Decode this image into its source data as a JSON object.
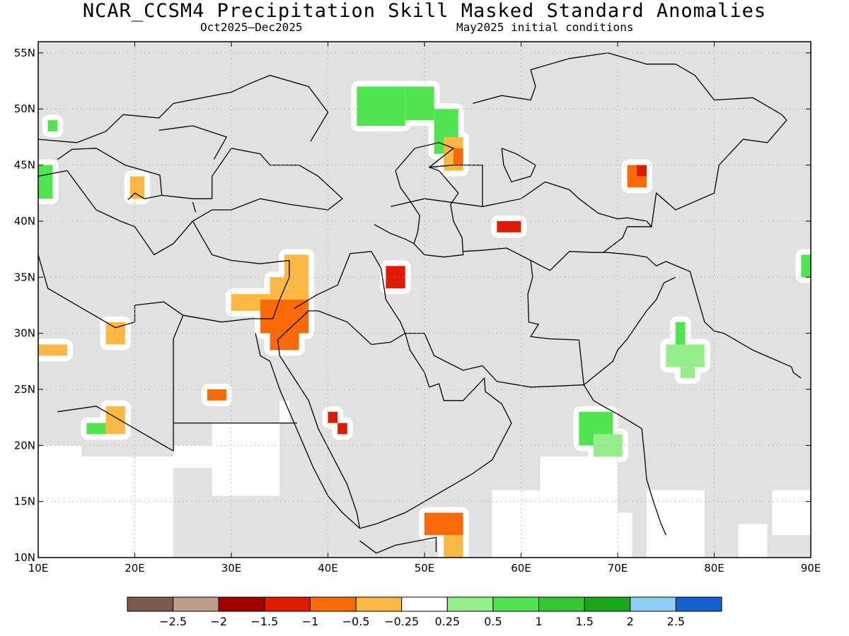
{
  "title": "NCAR_CCSM4 Precipitation Skill Masked Standard Anomalies",
  "subtitle_left": "Oct2025–Dec2025",
  "subtitle_right": "May2025 initial conditions",
  "colors": {
    "land": "#e1e1e1",
    "masked": "#ffffff",
    "border": "#000000",
    "grid": "#9a9a9a"
  },
  "axes": {
    "lon_min": 10,
    "lon_max": 90,
    "lat_min": 10,
    "lat_max": 56,
    "lon_ticks": [
      {
        "v": 10,
        "label": "10E"
      },
      {
        "v": 20,
        "label": "20E"
      },
      {
        "v": 30,
        "label": "30E"
      },
      {
        "v": 40,
        "label": "40E"
      },
      {
        "v": 50,
        "label": "50E"
      },
      {
        "v": 60,
        "label": "60E"
      },
      {
        "v": 70,
        "label": "70E"
      },
      {
        "v": 80,
        "label": "80E"
      },
      {
        "v": 90,
        "label": "90E"
      }
    ],
    "lat_ticks": [
      {
        "v": 10,
        "label": "10N"
      },
      {
        "v": 15,
        "label": "15N"
      },
      {
        "v": 20,
        "label": "20N"
      },
      {
        "v": 25,
        "label": "25N"
      },
      {
        "v": 30,
        "label": "30N"
      },
      {
        "v": 35,
        "label": "35N"
      },
      {
        "v": 40,
        "label": "40N"
      },
      {
        "v": 45,
        "label": "45N"
      },
      {
        "v": 50,
        "label": "50N"
      },
      {
        "v": 55,
        "label": "55N"
      }
    ]
  },
  "colorbar": {
    "colors": [
      "#7a5a4a",
      "#c09a8a",
      "#a40000",
      "#e01a00",
      "#f86a08",
      "#fbb844",
      "#ffffff",
      "#96ee8a",
      "#50e450",
      "#33c733",
      "#1ba71b",
      "#8ecef5",
      "#1560d0"
    ],
    "labels": [
      "−2.5",
      "−2",
      "−1.5",
      "−1",
      "−0.5",
      "−0.25",
      "0.25",
      "0.5",
      "1",
      "1.5",
      "2",
      "2.5"
    ]
  },
  "masked_regions": [
    [
      10,
      10,
      14.5,
      20
    ],
    [
      14.5,
      10,
      24,
      19
    ],
    [
      24,
      18,
      28,
      20
    ],
    [
      28,
      15.5,
      35,
      22
    ],
    [
      35,
      22,
      36,
      24
    ],
    [
      57,
      10,
      60,
      16
    ],
    [
      60,
      10,
      70,
      16
    ],
    [
      62,
      16,
      70,
      19
    ],
    [
      70,
      10,
      71.5,
      14
    ],
    [
      73,
      10,
      79,
      16
    ],
    [
      82.5,
      10,
      85.5,
      13
    ],
    [
      86,
      12,
      90,
      16
    ]
  ],
  "anomaly_cells": [
    {
      "lon": [
        43,
        48
      ],
      "lat": [
        48.5,
        52
      ],
      "cat": "pos_1.0"
    },
    {
      "lon": [
        48,
        51
      ],
      "lat": [
        49,
        52
      ],
      "cat": "pos_1.0"
    },
    {
      "lon": [
        51,
        53.5
      ],
      "lat": [
        46,
        50
      ],
      "cat": "pos_1.0"
    },
    {
      "lon": [
        52,
        54
      ],
      "lat": [
        44.5,
        47.5
      ],
      "cat": "neg_0.25"
    },
    {
      "lon": [
        53,
        54
      ],
      "lat": [
        45,
        46.5
      ],
      "cat": "neg_0.5"
    },
    {
      "lon": [
        10,
        11.5
      ],
      "lat": [
        42,
        45
      ],
      "cat": "pos_1.0"
    },
    {
      "lon": [
        11,
        12
      ],
      "lat": [
        48,
        49
      ],
      "cat": "pos_1.0"
    },
    {
      "lon": [
        19.5,
        21
      ],
      "lat": [
        42,
        44
      ],
      "cat": "neg_0.25"
    },
    {
      "lon": [
        35.5,
        38
      ],
      "lat": [
        35,
        37
      ],
      "cat": "neg_0.25"
    },
    {
      "lon": [
        34,
        38
      ],
      "lat": [
        33,
        35
      ],
      "cat": "neg_0.25"
    },
    {
      "lon": [
        30,
        34
      ],
      "lat": [
        32,
        33.5
      ],
      "cat": "neg_0.25"
    },
    {
      "lon": [
        33,
        38
      ],
      "lat": [
        30,
        33
      ],
      "cat": "neg_0.5"
    },
    {
      "lon": [
        34,
        37
      ],
      "lat": [
        28.5,
        31
      ],
      "cat": "neg_0.5"
    },
    {
      "lon": [
        46,
        48
      ],
      "lat": [
        34,
        36
      ],
      "cat": "neg_1.0"
    },
    {
      "lon": [
        57.5,
        60
      ],
      "lat": [
        39,
        40
      ],
      "cat": "neg_1.0"
    },
    {
      "lon": [
        10,
        13
      ],
      "lat": [
        28,
        29
      ],
      "cat": "neg_0.25"
    },
    {
      "lon": [
        17,
        19
      ],
      "lat": [
        29,
        31
      ],
      "cat": "neg_0.25"
    },
    {
      "lon": [
        27.5,
        29.5
      ],
      "lat": [
        24,
        25
      ],
      "cat": "neg_0.5"
    },
    {
      "lon": [
        40,
        41
      ],
      "lat": [
        22,
        23
      ],
      "cat": "neg_1.0"
    },
    {
      "lon": [
        41,
        42
      ],
      "lat": [
        21,
        22
      ],
      "cat": "neg_1.0"
    },
    {
      "lon": [
        17,
        19
      ],
      "lat": [
        21,
        23.5
      ],
      "cat": "neg_0.25"
    },
    {
      "lon": [
        50,
        54
      ],
      "lat": [
        12,
        14
      ],
      "cat": "neg_0.5"
    },
    {
      "lon": [
        52,
        54
      ],
      "lat": [
        10,
        12
      ],
      "cat": "neg_0.25"
    },
    {
      "lon": [
        66,
        69.5
      ],
      "lat": [
        20,
        23
      ],
      "cat": "pos_1.0"
    },
    {
      "lon": [
        67.5,
        70.5
      ],
      "lat": [
        19,
        21
      ],
      "cat": "pos_0.5"
    },
    {
      "lon": [
        75,
        79
      ],
      "lat": [
        27,
        29
      ],
      "cat": "pos_0.5"
    },
    {
      "lon": [
        76.5,
        78
      ],
      "lat": [
        26,
        27
      ],
      "cat": "pos_0.5"
    },
    {
      "lon": [
        76,
        77
      ],
      "lat": [
        29,
        31
      ],
      "cat": "pos_1.0"
    },
    {
      "lon": [
        71,
        73
      ],
      "lat": [
        43,
        45
      ],
      "cat": "neg_0.5"
    },
    {
      "lon": [
        72,
        73
      ],
      "lat": [
        44,
        45
      ],
      "cat": "neg_1.0"
    },
    {
      "lon": [
        89,
        90
      ],
      "lat": [
        35,
        37
      ],
      "cat": "pos_1.0"
    },
    {
      "lon": [
        15,
        17
      ],
      "lat": [
        21,
        22
      ],
      "cat": "pos_1.0"
    }
  ]
}
